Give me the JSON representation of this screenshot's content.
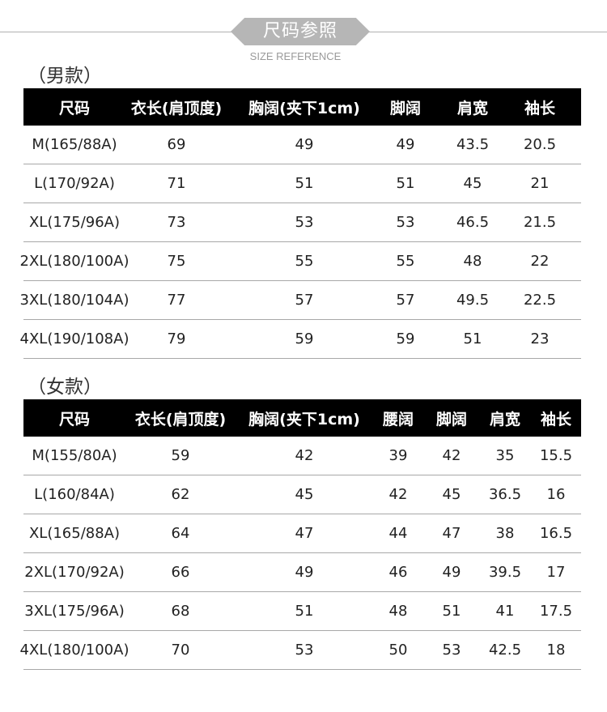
{
  "banner": {
    "title": "尺码参照",
    "subtitle": "SIZE REFERENCE"
  },
  "colors": {
    "banner": "#b6b6b6",
    "header_bg": "#000000",
    "header_text": "#ffffff",
    "divider": "#a8a8a8"
  },
  "men": {
    "label": "（男款）",
    "headers": [
      "尺码",
      "衣长(肩顶度)",
      "胸阔(夹下1cm)",
      "脚阔",
      "肩宽",
      "袖长"
    ],
    "rows": [
      [
        "M(165/88A)",
        "69",
        "49",
        "49",
        "43.5",
        "20.5"
      ],
      [
        "L(170/92A)",
        "71",
        "51",
        "51",
        "45",
        "21"
      ],
      [
        "XL(175/96A)",
        "73",
        "53",
        "53",
        "46.5",
        "21.5"
      ],
      [
        "2XL(180/100A)",
        "75",
        "55",
        "55",
        "48",
        "22"
      ],
      [
        "3XL(180/104A)",
        "77",
        "57",
        "57",
        "49.5",
        "22.5"
      ],
      [
        "4XL(190/108A)",
        "79",
        "59",
        "59",
        "51",
        "23"
      ]
    ]
  },
  "women": {
    "label": "（女款）",
    "headers": [
      "尺码",
      "衣长(肩顶度)",
      "胸阔(夹下1cm)",
      "腰阔",
      "脚阔",
      "肩宽",
      "袖长"
    ],
    "rows": [
      [
        "M(155/80A)",
        "59",
        "42",
        "39",
        "42",
        "35",
        "15.5"
      ],
      [
        "L(160/84A)",
        "62",
        "45",
        "42",
        "45",
        "36.5",
        "16"
      ],
      [
        "XL(165/88A)",
        "64",
        "47",
        "44",
        "47",
        "38",
        "16.5"
      ],
      [
        "2XL(170/92A)",
        "66",
        "49",
        "46",
        "49",
        "39.5",
        "17"
      ],
      [
        "3XL(175/96A)",
        "68",
        "51",
        "48",
        "51",
        "41",
        "17.5"
      ],
      [
        "4XL(180/100A)",
        "70",
        "53",
        "50",
        "53",
        "42.5",
        "18"
      ]
    ]
  }
}
